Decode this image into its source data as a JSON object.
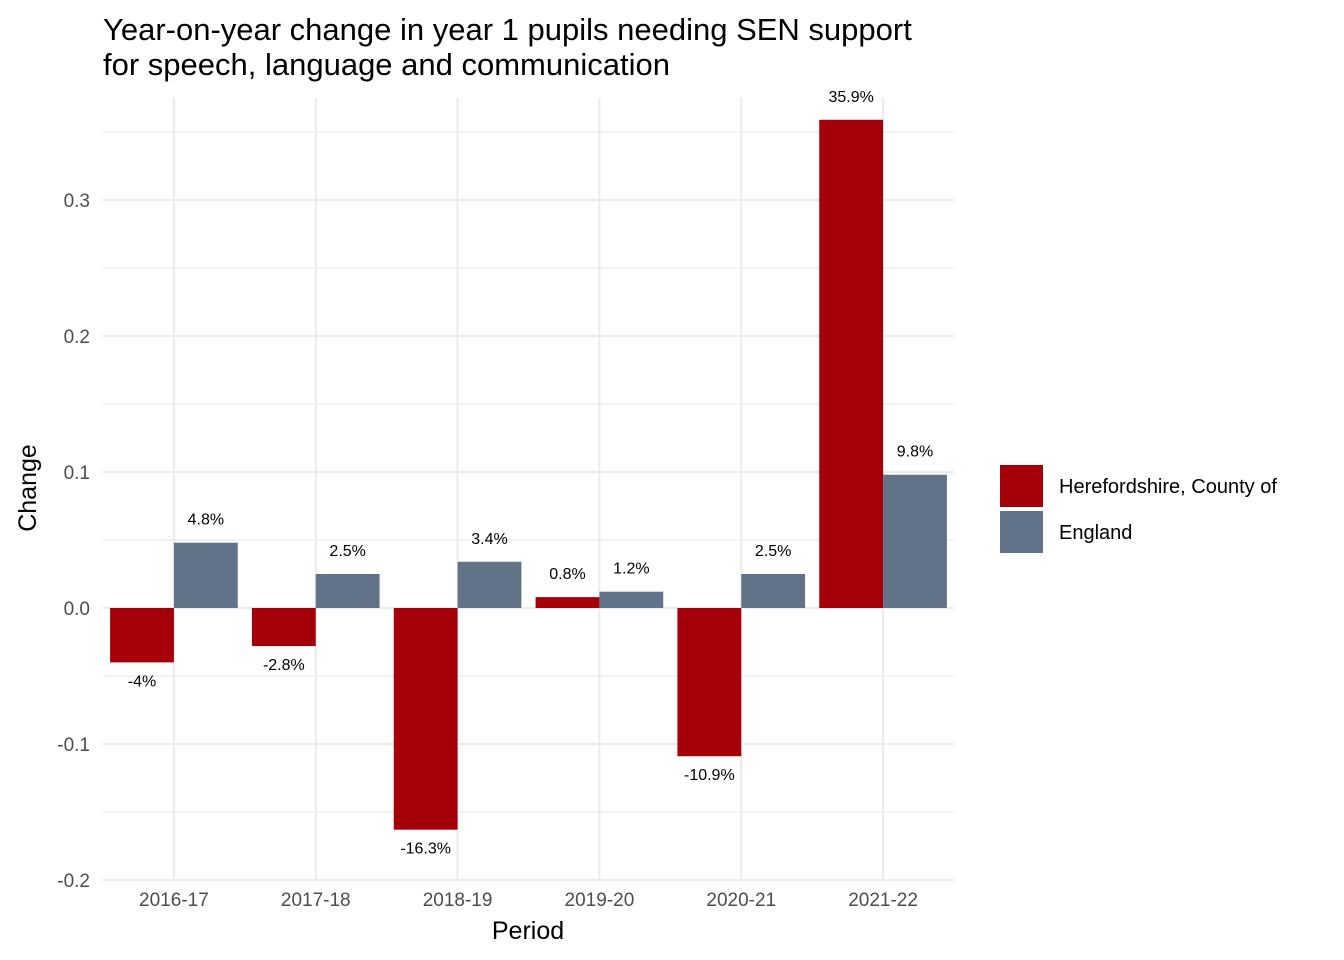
{
  "chart_data": {
    "type": "bar",
    "title": "Year-on-year change in year 1 pupils needing SEN support\nfor speech, language and communication",
    "xlabel": "Period",
    "ylabel": "Change",
    "categories": [
      "2016-17",
      "2017-18",
      "2018-19",
      "2019-20",
      "2020-21",
      "2021-22"
    ],
    "series": [
      {
        "name": "Herefordshire, County of",
        "color": "#a50009",
        "values": [
          -0.04,
          -0.028,
          -0.163,
          0.008,
          -0.109,
          0.359
        ],
        "labels": [
          "-4%",
          "-2.8%",
          "-16.3%",
          "0.8%",
          "-10.9%",
          "35.9%"
        ]
      },
      {
        "name": "England",
        "color": "#627389",
        "values": [
          0.048,
          0.025,
          0.034,
          0.012,
          0.025,
          0.098
        ],
        "labels": [
          "4.8%",
          "2.5%",
          "3.4%",
          "1.2%",
          "2.5%",
          "9.8%"
        ]
      }
    ],
    "ylim": [
      -0.2,
      0.375
    ],
    "yticks": [
      -0.2,
      -0.1,
      0.0,
      0.1,
      0.2,
      0.3
    ],
    "ytick_labels": [
      "-0.2",
      "-0.1",
      "0.0",
      "0.1",
      "0.2",
      "0.3"
    ],
    "grid": true,
    "legend_position": "right"
  }
}
